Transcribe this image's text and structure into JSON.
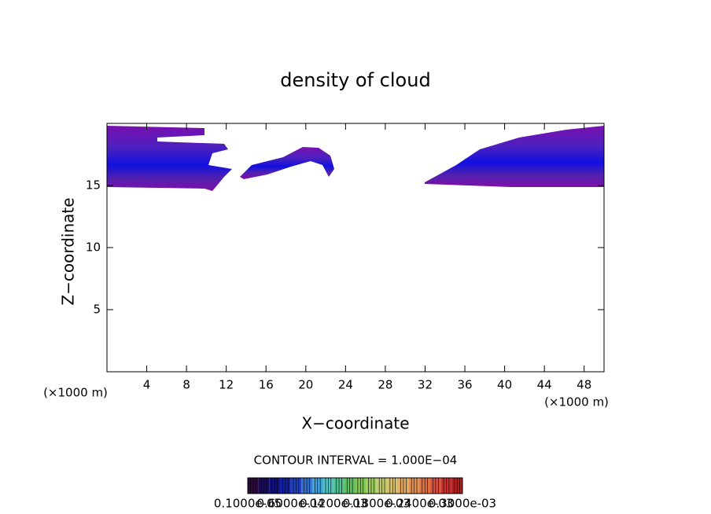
{
  "chart_data": {
    "type": "contour",
    "title": "density of cloud",
    "xlabel": "X−coordinate",
    "ylabel": "Z−coordinate",
    "xunit": "(×1000 m)",
    "yunit": "(×1000 m)",
    "xlim": [
      0,
      50
    ],
    "ylim": [
      0,
      20
    ],
    "xticks": [
      4,
      8,
      12,
      16,
      20,
      24,
      28,
      32,
      36,
      40,
      44,
      48
    ],
    "yticks": [
      5,
      10,
      15
    ],
    "annotation": "CONTOUR INTERVAL = 1.000E−04",
    "colorbar": {
      "labels": [
        "0.1000e-05",
        "0.6000e-04",
        "0.1200e-03",
        "0.1800e-03",
        "0.2400e-03",
        "0.3000e-03"
      ],
      "colors": [
        "#2a0a3a",
        "#1a0a5a",
        "#10107a",
        "#1020a0",
        "#2040c0",
        "#3070d0",
        "#40a0d8",
        "#50c0c0",
        "#50c090",
        "#60c060",
        "#80c850",
        "#a0c860",
        "#c0c870",
        "#d8c070",
        "#e0a860",
        "#e09050",
        "#e07040",
        "#d85040",
        "#c83030",
        "#b02020"
      ]
    }
  }
}
